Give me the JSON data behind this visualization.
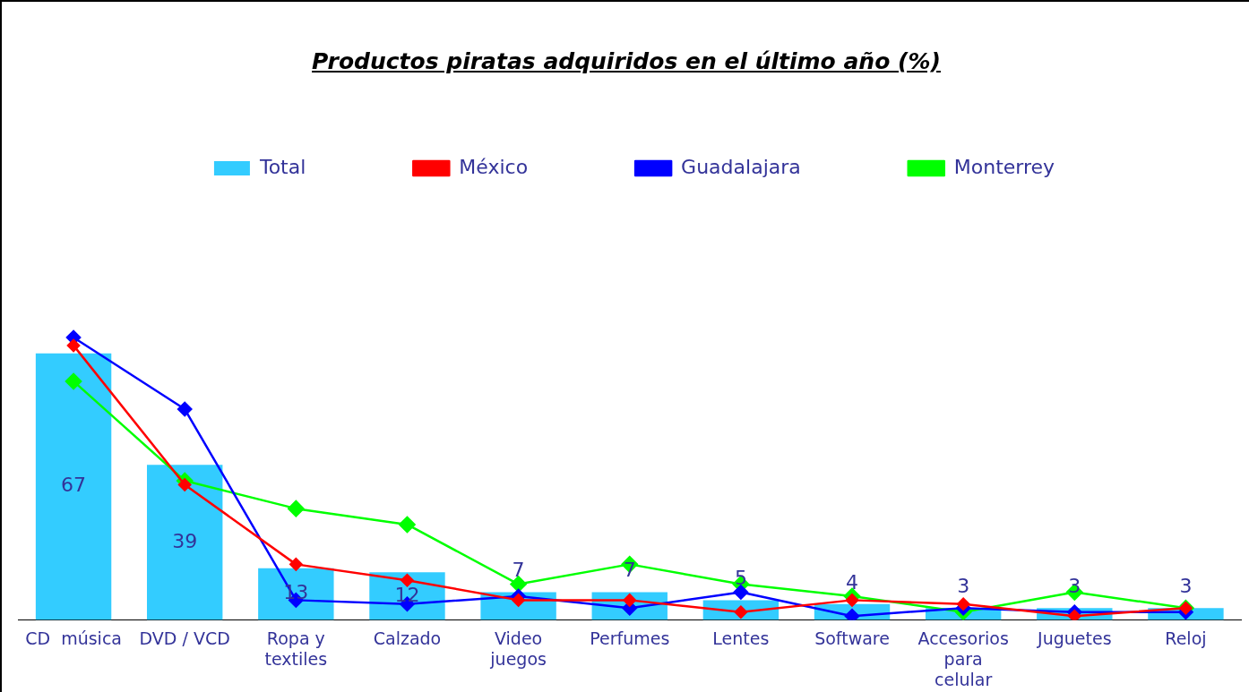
{
  "chart_data": {
    "type": "bar",
    "title": "Productos piratas adquiridos en el último año (%)",
    "categories": [
      "CD  música",
      "DVD / VCD",
      "Ropa y textiles",
      "Calzado",
      "Video juegos",
      "Perfumes",
      "Lentes",
      "Software",
      "Accesorios para celular",
      "Juguetes",
      "Reloj"
    ],
    "series": [
      {
        "name": "Total",
        "color": "#33ccff",
        "values": [
          67,
          39,
          13,
          12,
          7,
          7,
          5,
          4,
          3,
          3,
          3
        ],
        "data_labels": true
      },
      {
        "name": "México",
        "type": "line",
        "color": "#ff0000",
        "values": [
          69,
          34,
          14,
          10,
          5,
          5,
          2,
          5,
          4,
          1,
          3
        ]
      },
      {
        "name": "Guadalajara",
        "type": "line",
        "color": "#0000ff",
        "values": [
          71,
          53,
          5,
          4,
          6,
          3,
          7,
          1,
          3,
          2,
          2
        ]
      },
      {
        "name": "Monterrey",
        "type": "line",
        "color": "#00ff00",
        "values": [
          60,
          35,
          28,
          24,
          9,
          14,
          9,
          6,
          2,
          7,
          3
        ]
      }
    ],
    "tick_labels": "x",
    "grid": false,
    "legend": "top",
    "marker": "diamond",
    "line_style": "solid"
  }
}
